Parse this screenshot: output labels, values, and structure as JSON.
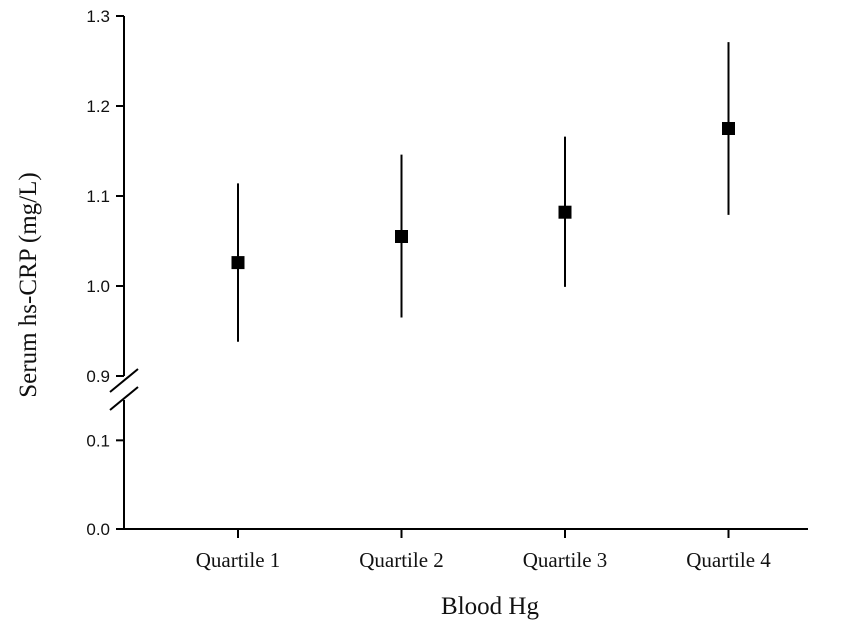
{
  "chart_data": {
    "type": "scatter",
    "xlabel": "Blood Hg",
    "ylabel": "Serum hs-CRP (mg/L)",
    "categories": [
      "Quartile 1",
      "Quartile 2",
      "Quartile 3",
      "Quartile 4"
    ],
    "series": [
      {
        "values": [
          1.026,
          1.055,
          1.082,
          1.175
        ],
        "error_low": [
          0.938,
          0.965,
          0.999,
          1.079
        ],
        "error_high": [
          1.114,
          1.146,
          1.166,
          1.271
        ]
      }
    ],
    "y_axis": {
      "broken": true,
      "lower_segment": {
        "range": [
          0.0,
          0.15
        ],
        "ticks": [
          "0.0",
          "0.1"
        ]
      },
      "upper_segment": {
        "range": [
          0.9,
          1.3
        ],
        "ticks": [
          "0.9",
          "1.0",
          "1.1",
          "1.2",
          "1.3"
        ]
      }
    },
    "grid": false,
    "legend": "none",
    "colors": {
      "marker": "#000000",
      "axis": "#000000"
    }
  }
}
